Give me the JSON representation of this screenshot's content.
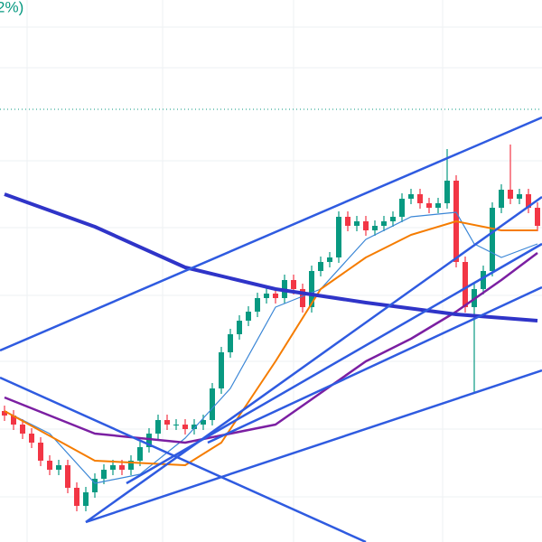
{
  "chart_data": {
    "type": "candlestick",
    "title": "2%)",
    "ylim": [
      0,
      600
    ],
    "up_color": "#089981",
    "down_color": "#f23645",
    "open": [
      145,
      140,
      130,
      120,
      110,
      90,
      80,
      85,
      60,
      40,
      55,
      70,
      80,
      85,
      80,
      90,
      105,
      120,
      135,
      130,
      130,
      125,
      130,
      135,
      170,
      210,
      230,
      245,
      255,
      270,
      275,
      270,
      290,
      280,
      260,
      300,
      310,
      315,
      360,
      350,
      355,
      345,
      350,
      355,
      360,
      380,
      385,
      375,
      370,
      375,
      400,
      310,
      260,
      280,
      300,
      370,
      390,
      380,
      385,
      370
    ],
    "high": [
      151,
      146,
      136,
      126,
      116,
      96,
      91,
      91,
      66,
      61,
      76,
      86,
      91,
      91,
      96,
      111,
      126,
      141,
      141,
      136,
      136,
      136,
      141,
      176,
      216,
      236,
      251,
      261,
      276,
      281,
      281,
      296,
      296,
      286,
      306,
      316,
      321,
      366,
      366,
      361,
      361,
      356,
      361,
      366,
      386,
      391,
      391,
      381,
      381,
      435,
      406,
      316,
      286,
      306,
      376,
      396,
      440,
      391,
      391,
      376
    ],
    "low": [
      134,
      124,
      114,
      104,
      84,
      74,
      74,
      54,
      34,
      34,
      49,
      64,
      74,
      74,
      74,
      84,
      99,
      114,
      124,
      124,
      119,
      119,
      124,
      129,
      164,
      204,
      224,
      239,
      249,
      264,
      264,
      264,
      274,
      254,
      254,
      294,
      304,
      309,
      344,
      344,
      339,
      339,
      344,
      349,
      354,
      374,
      369,
      364,
      364,
      369,
      304,
      254,
      165,
      274,
      294,
      364,
      374,
      374,
      364,
      344
    ],
    "close": [
      140,
      130,
      120,
      110,
      90,
      80,
      85,
      60,
      40,
      55,
      70,
      80,
      85,
      80,
      90,
      105,
      120,
      135,
      130,
      130,
      125,
      130,
      135,
      170,
      210,
      230,
      245,
      255,
      270,
      275,
      270,
      290,
      280,
      260,
      300,
      310,
      315,
      360,
      350,
      355,
      345,
      350,
      355,
      360,
      380,
      385,
      375,
      370,
      375,
      400,
      310,
      260,
      280,
      300,
      370,
      390,
      380,
      385,
      370,
      350
    ],
    "overlays": [
      {
        "color": "#3a86d6",
        "width": 1.2,
        "x": [
          0,
          5,
          10,
          15,
          20,
          25,
          30,
          35,
          40,
          45,
          50,
          52,
          55,
          59
        ],
        "values": [
          145,
          120,
          65,
          75,
          115,
          170,
          260,
          280,
          335,
          360,
          365,
          330,
          315,
          330
        ]
      },
      {
        "color": "#f57c00",
        "width": 2,
        "x": [
          0,
          10,
          20,
          24,
          30,
          35,
          40,
          45,
          50,
          55,
          59
        ],
        "values": [
          145,
          90,
          85,
          110,
          200,
          280,
          315,
          340,
          355,
          345,
          345
        ]
      },
      {
        "color": "#7b1fa2",
        "width": 2.5,
        "x": [
          0,
          10,
          20,
          30,
          40,
          45,
          50,
          55,
          59
        ],
        "values": [
          160,
          120,
          110,
          130,
          200,
          225,
          255,
          290,
          320
        ]
      },
      {
        "color": "#2f34c8",
        "width": 4,
        "x": [
          0,
          10,
          20,
          30,
          40,
          50,
          59
        ],
        "values": [
          385,
          349,
          304,
          280,
          265,
          252,
          245
        ]
      }
    ]
  }
}
